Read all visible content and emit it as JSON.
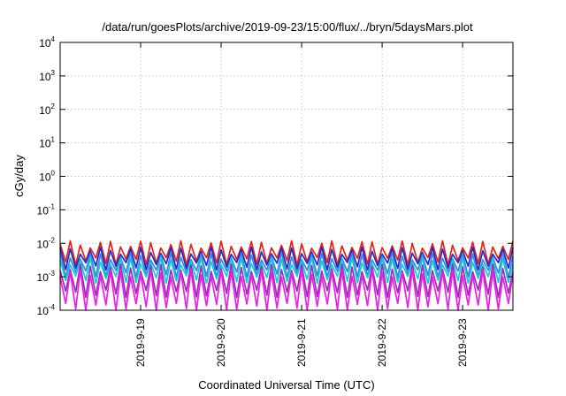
{
  "chart_data": {
    "type": "line",
    "title": "/data/run/goesPlots/archive/2019-09-23/15:00/flux/../bryn/5daysMars.plot",
    "xlabel": "Coordinated Universal Time (UTC)",
    "ylabel": "cGy/day",
    "yscale": "log",
    "ylim": [
      0.0001,
      10000
    ],
    "y_ticks": [
      {
        "base": "10",
        "exp": "-4",
        "value": 0.0001
      },
      {
        "base": "10",
        "exp": "-3",
        "value": 0.001
      },
      {
        "base": "10",
        "exp": "-2",
        "value": 0.01
      },
      {
        "base": "10",
        "exp": "-1",
        "value": 0.1
      },
      {
        "base": "10",
        "exp": "0",
        "value": 1
      },
      {
        "base": "10",
        "exp": "1",
        "value": 10
      },
      {
        "base": "10",
        "exp": "2",
        "value": 100
      },
      {
        "base": "10",
        "exp": "3",
        "value": 1000
      },
      {
        "base": "10",
        "exp": "4",
        "value": 10000
      }
    ],
    "xlim": [
      "2019-09-18T00:00",
      "2019-09-23T15:00"
    ],
    "x_ticks": [
      {
        "label": "2019-9-19",
        "value": "2019-09-19T00:00"
      },
      {
        "label": "2019-9-20",
        "value": "2019-09-20T00:00"
      },
      {
        "label": "2019-9-21",
        "value": "2019-09-21T00:00"
      },
      {
        "label": "2019-9-22",
        "value": "2019-09-22T00:00"
      },
      {
        "label": "2019-9-23",
        "value": "2019-09-23T00:00"
      }
    ],
    "grid": true,
    "legend": "none",
    "cycles_per_day": 8,
    "series": [
      {
        "color": "#e8201a",
        "peak": 0.0095,
        "trough": 0.0028
      },
      {
        "color": "#1a2ccc",
        "peak": 0.0062,
        "trough": 0.002
      },
      {
        "color": "#3a84ee",
        "peak": 0.0042,
        "trough": 0.0012
      },
      {
        "color": "#14cccc",
        "peak": 0.003,
        "trough": 0.0008
      },
      {
        "color": "#9b2bb8",
        "peak": 0.0019,
        "trough": 0.0003
      },
      {
        "color": "#ee1ee8",
        "peak": 0.0013,
        "trough": 0.00012
      }
    ]
  }
}
